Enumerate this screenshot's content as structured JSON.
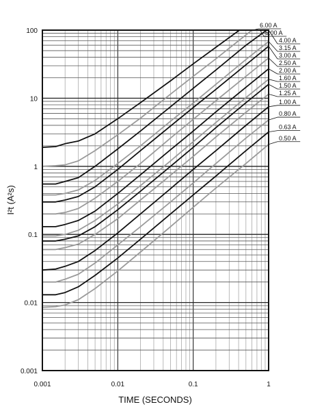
{
  "chart_data": {
    "type": "line",
    "x_scale": "log",
    "y_scale": "log",
    "xlabel": "TIME (SECONDS)",
    "ylabel": "I²t (A²s)",
    "xlim": [
      0.001,
      1
    ],
    "ylim": [
      0.001,
      100
    ],
    "x_ticks": [
      {
        "value": 0.001,
        "label": "0.001"
      },
      {
        "value": 0.01,
        "label": "0.01"
      },
      {
        "value": 0.1,
        "label": "0.1"
      },
      {
        "value": 1,
        "label": "1"
      }
    ],
    "y_ticks": [
      {
        "value": 0.001,
        "label": "0.001"
      },
      {
        "value": 0.01,
        "label": "0.01"
      },
      {
        "value": 0.1,
        "label": "0.1"
      },
      {
        "value": 1,
        "label": "1"
      },
      {
        "value": 10,
        "label": "10"
      },
      {
        "value": 100,
        "label": "100"
      }
    ],
    "grid": true,
    "legend": "curve labels at top-right, right of plot",
    "colors": {
      "dark": "#111111",
      "gray": "#9a9a9a"
    },
    "series": [
      {
        "name": "6.00 A",
        "color": "dark",
        "x": [
          0.001,
          0.0015,
          0.002,
          0.003,
          0.005,
          0.01,
          0.02,
          0.05,
          0.1,
          0.2,
          0.4,
          0.62
        ],
        "y": [
          1.9,
          1.95,
          2.15,
          2.35,
          3.0,
          5.0,
          8.6,
          18,
          32,
          56,
          98,
          140
        ]
      },
      {
        "name": "5.00 A",
        "color": "gray",
        "x": [
          0.001,
          0.0015,
          0.002,
          0.003,
          0.005,
          0.01,
          0.02,
          0.05,
          0.1,
          0.2,
          0.5,
          0.77
        ],
        "y": [
          1.0,
          1.02,
          1.05,
          1.2,
          1.7,
          2.9,
          5.1,
          11.5,
          21,
          38,
          85,
          125
        ]
      },
      {
        "name": "4.00 A",
        "color": "dark",
        "x": [
          0.001,
          0.0015,
          0.002,
          0.003,
          0.005,
          0.01,
          0.02,
          0.05,
          0.1,
          0.2,
          0.5,
          1
        ],
        "y": [
          0.55,
          0.55,
          0.6,
          0.68,
          1.0,
          1.8,
          3.3,
          7.5,
          14,
          26,
          60,
          105
        ]
      },
      {
        "name": "3.15 A",
        "color": "gray",
        "x": [
          0.001,
          0.0015,
          0.002,
          0.003,
          0.005,
          0.01,
          0.02,
          0.05,
          0.1,
          0.2,
          0.5,
          1
        ],
        "y": [
          0.38,
          0.38,
          0.4,
          0.45,
          0.62,
          1.1,
          2.0,
          4.6,
          8.5,
          16,
          37,
          68
        ]
      },
      {
        "name": "3.00 A",
        "color": "dark",
        "x": [
          0.001,
          0.0015,
          0.002,
          0.003,
          0.005,
          0.01,
          0.02,
          0.05,
          0.1,
          0.2,
          0.5,
          1
        ],
        "y": [
          0.3,
          0.3,
          0.32,
          0.36,
          0.5,
          0.9,
          1.7,
          3.9,
          7.3,
          13.5,
          31,
          58
        ]
      },
      {
        "name": "2.50 A",
        "color": "gray",
        "x": [
          0.001,
          0.0015,
          0.002,
          0.003,
          0.005,
          0.01,
          0.02,
          0.05,
          0.1,
          0.2,
          0.5,
          1
        ],
        "y": [
          0.2,
          0.2,
          0.21,
          0.24,
          0.34,
          0.6,
          1.1,
          2.6,
          4.9,
          9.2,
          21,
          39
        ]
      },
      {
        "name": "2.00 A",
        "color": "dark",
        "x": [
          0.001,
          0.0015,
          0.002,
          0.003,
          0.005,
          0.01,
          0.02,
          0.05,
          0.1,
          0.2,
          0.5,
          1
        ],
        "y": [
          0.13,
          0.13,
          0.14,
          0.16,
          0.22,
          0.4,
          0.75,
          1.75,
          3.3,
          6.3,
          14.5,
          27
        ]
      },
      {
        "name": "1.60 A",
        "color": "gray",
        "x": [
          0.001,
          0.0015,
          0.002,
          0.003,
          0.005,
          0.01,
          0.02,
          0.05,
          0.1,
          0.2,
          0.5,
          1
        ],
        "y": [
          0.095,
          0.095,
          0.1,
          0.115,
          0.16,
          0.28,
          0.52,
          1.2,
          2.3,
          4.4,
          10.2,
          19
        ]
      },
      {
        "name": "1.50 A",
        "color": "dark",
        "x": [
          0.001,
          0.0015,
          0.002,
          0.003,
          0.005,
          0.01,
          0.02,
          0.05,
          0.1,
          0.2,
          0.5,
          1
        ],
        "y": [
          0.08,
          0.08,
          0.085,
          0.095,
          0.13,
          0.23,
          0.43,
          1.0,
          1.9,
          3.7,
          8.6,
          16
        ]
      },
      {
        "name": "1.25 A",
        "color": "gray",
        "x": [
          0.001,
          0.0015,
          0.002,
          0.003,
          0.005,
          0.01,
          0.02,
          0.05,
          0.1,
          0.2,
          0.5,
          1
        ],
        "y": [
          0.06,
          0.06,
          0.064,
          0.072,
          0.1,
          0.17,
          0.32,
          0.74,
          1.4,
          2.7,
          6.2,
          11.5
        ]
      },
      {
        "name": "1.00 A",
        "color": "dark",
        "x": [
          0.001,
          0.0015,
          0.002,
          0.003,
          0.005,
          0.01,
          0.02,
          0.05,
          0.1,
          0.2,
          0.5,
          1
        ],
        "y": [
          0.03,
          0.031,
          0.034,
          0.04,
          0.058,
          0.105,
          0.2,
          0.47,
          0.9,
          1.7,
          4.0,
          7.5
        ]
      },
      {
        "name": "0.80 A",
        "color": "gray",
        "x": [
          0.001,
          0.0015,
          0.002,
          0.003,
          0.005,
          0.01,
          0.02,
          0.05,
          0.1,
          0.2,
          0.5,
          1
        ],
        "y": [
          0.02,
          0.02,
          0.022,
          0.026,
          0.038,
          0.07,
          0.13,
          0.3,
          0.57,
          1.1,
          2.6,
          4.8
        ]
      },
      {
        "name": "0.63 A",
        "color": "dark",
        "x": [
          0.001,
          0.0015,
          0.002,
          0.003,
          0.005,
          0.01,
          0.02,
          0.05,
          0.1,
          0.2,
          0.5,
          1
        ],
        "y": [
          0.013,
          0.013,
          0.014,
          0.017,
          0.025,
          0.045,
          0.085,
          0.2,
          0.38,
          0.72,
          1.7,
          3.2
        ]
      },
      {
        "name": "0.50 A",
        "color": "gray",
        "x": [
          0.001,
          0.0015,
          0.002,
          0.003,
          0.005,
          0.01,
          0.02,
          0.05,
          0.1,
          0.2,
          0.5,
          1
        ],
        "y": [
          0.0085,
          0.0087,
          0.0092,
          0.011,
          0.016,
          0.029,
          0.055,
          0.13,
          0.25,
          0.48,
          1.1,
          2.1
        ]
      }
    ]
  }
}
